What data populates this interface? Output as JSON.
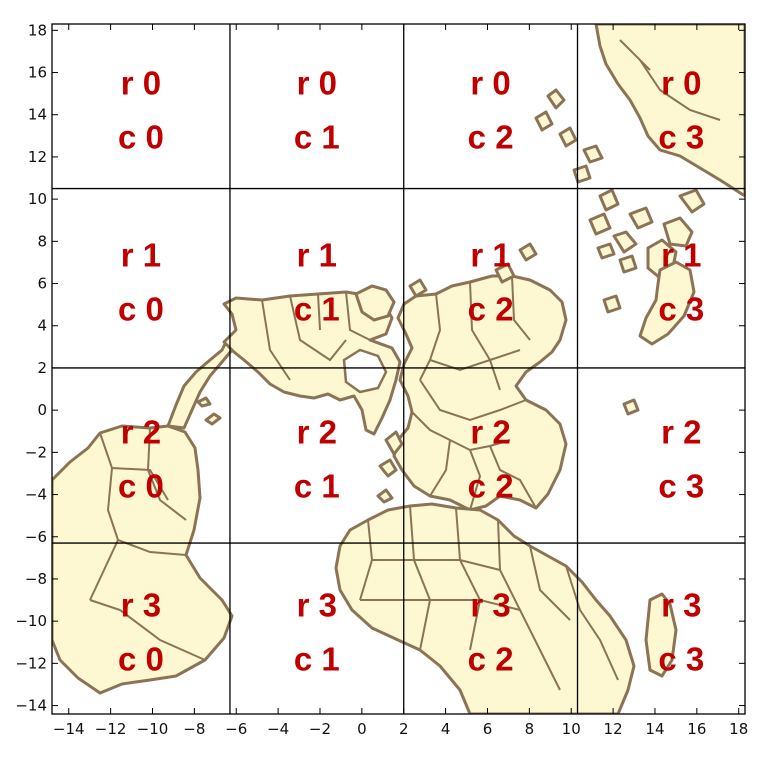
{
  "map": {
    "x_ticks": [
      "−14",
      "−12",
      "−10",
      "−8",
      "−6",
      "−4",
      "−2",
      "0",
      "2",
      "4",
      "6",
      "8",
      "10",
      "12",
      "14",
      "16",
      "18"
    ],
    "x_tick_values": [
      -14,
      -12,
      -10,
      -8,
      -6,
      -4,
      -2,
      0,
      2,
      4,
      6,
      8,
      10,
      12,
      14,
      16,
      18
    ],
    "y_ticks": [
      "18",
      "16",
      "14",
      "12",
      "10",
      "8",
      "6",
      "4",
      "2",
      "0",
      "−2",
      "−4",
      "−6",
      "−8",
      "−10",
      "−12",
      "−14"
    ],
    "y_tick_values": [
      18,
      16,
      14,
      12,
      10,
      8,
      6,
      4,
      2,
      0,
      -2,
      -4,
      -6,
      -8,
      -10,
      -12,
      -14
    ],
    "x_range": [
      -14.8,
      18.3
    ],
    "y_range": [
      -14.4,
      18.3
    ],
    "grid": {
      "vertical_at": [
        -6.3,
        2,
        10.3
      ],
      "horizontal_rows_0_1": 10.5,
      "horizontal_rows_1_2": 2,
      "horizontal_rows_2_3": -6.3
    },
    "colors": {
      "land": "#fdf8d2",
      "border": "#8b7355",
      "label": "#c00000",
      "grid": "#000000"
    },
    "cells": [
      {
        "row": "r 0",
        "col": "c 0"
      },
      {
        "row": "r 0",
        "col": "c 1"
      },
      {
        "row": "r 0",
        "col": "c 2"
      },
      {
        "row": "r 0",
        "col": "c 3"
      },
      {
        "row": "r 1",
        "col": "c 0"
      },
      {
        "row": "r 1",
        "col": "c 1"
      },
      {
        "row": "r 1",
        "col": "c 2"
      },
      {
        "row": "r 1",
        "col": "c 3"
      },
      {
        "row": "r 2",
        "col": "c 0"
      },
      {
        "row": "r 2",
        "col": "c 1"
      },
      {
        "row": "r 2",
        "col": "c 2"
      },
      {
        "row": "r 2",
        "col": "c 3"
      },
      {
        "row": "r 3",
        "col": "c 0"
      },
      {
        "row": "r 3",
        "col": "c 1"
      },
      {
        "row": "r 3",
        "col": "c 2"
      },
      {
        "row": "r 3",
        "col": "c 3"
      }
    ]
  }
}
